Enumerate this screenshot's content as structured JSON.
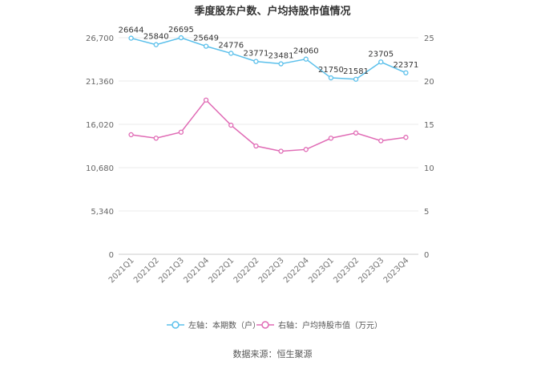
{
  "chart_data": {
    "type": "line",
    "title": "季度股东户数、户均持股市值情况",
    "categories": [
      "2021Q1",
      "2021Q2",
      "2021Q3",
      "2021Q4",
      "2022Q1",
      "2022Q2",
      "2022Q3",
      "2022Q4",
      "2023Q1",
      "2023Q2",
      "2023Q3",
      "2023Q4"
    ],
    "left_axis": {
      "ylim": [
        0,
        26700
      ],
      "ticks": [
        "0",
        "5,340",
        "10,680",
        "16,020",
        "21,360",
        "26,700"
      ]
    },
    "right_axis": {
      "ylim": [
        0,
        25
      ],
      "ticks": [
        "0",
        "5",
        "10",
        "15",
        "20",
        "25"
      ]
    },
    "series": [
      {
        "name": "左轴：本期数（户）",
        "axis": "left",
        "color": "#5bc0eb",
        "values": [
          26644,
          25840,
          26695,
          25649,
          24776,
          23771,
          23481,
          24060,
          21750,
          21581,
          23705,
          22371
        ],
        "labels": [
          "26644",
          "25840",
          "26695",
          "25649",
          "24776",
          "23771",
          "23481",
          "24060",
          "21750",
          "21581",
          "23705",
          "22371"
        ]
      },
      {
        "name": "右轴：户均持股市值（万元）",
        "axis": "right",
        "color": "#e06bb5",
        "values": [
          13.8,
          13.4,
          14.1,
          17.8,
          14.9,
          12.5,
          11.9,
          12.1,
          13.4,
          14.0,
          13.1,
          13.5
        ]
      }
    ],
    "grid": true,
    "legend": "bottom"
  },
  "source": "数据来源：恒生聚源"
}
